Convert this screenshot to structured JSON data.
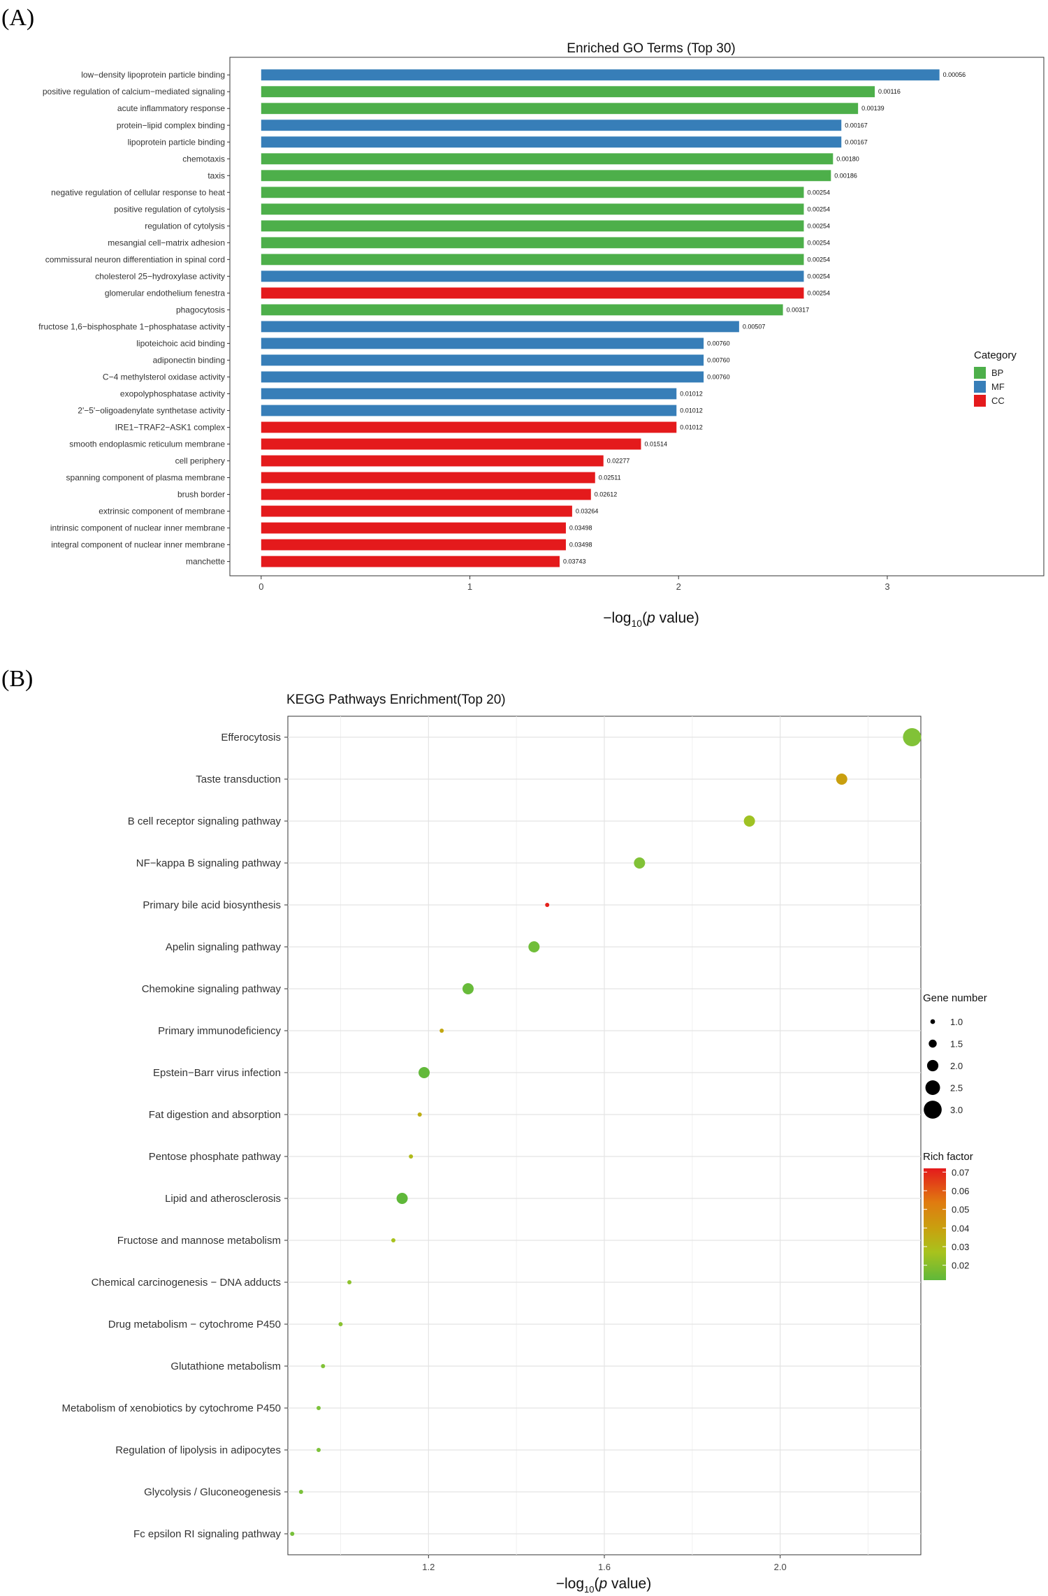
{
  "panels": {
    "a": "(A)",
    "b": "(B)"
  },
  "chart_data": [
    {
      "type": "bar",
      "orientation": "horizontal",
      "title": "Enriched GO Terms (Top 30)",
      "xlabel_main": "−log",
      "xlabel_sub": "10",
      "xlabel_p": "p",
      "xlabel_rest": " value)",
      "xlim": [
        -0.15,
        3.75
      ],
      "xticks": [
        "0",
        "1",
        "2",
        "3"
      ],
      "legend": {
        "title": "Category",
        "entries": [
          {
            "key": "BP",
            "label": "BP",
            "color": "#4daf4a"
          },
          {
            "key": "MF",
            "label": "MF",
            "color": "#377eb8"
          },
          {
            "key": "CC",
            "label": "CC",
            "color": "#e41a1c"
          }
        ]
      },
      "bars": [
        {
          "term": "low−density lipoprotein particle binding",
          "category": "MF",
          "pvalue_label": "0.00056",
          "value": 3.25
        },
        {
          "term": "positive regulation of calcium−mediated signaling",
          "category": "BP",
          "pvalue_label": "0.00116",
          "value": 2.94
        },
        {
          "term": "acute inflammatory response",
          "category": "BP",
          "pvalue_label": "0.00139",
          "value": 2.86
        },
        {
          "term": "protein−lipid complex binding",
          "category": "MF",
          "pvalue_label": "0.00167",
          "value": 2.78
        },
        {
          "term": "lipoprotein particle binding",
          "category": "MF",
          "pvalue_label": "0.00167",
          "value": 2.78
        },
        {
          "term": "chemotaxis",
          "category": "BP",
          "pvalue_label": "0.00180",
          "value": 2.74
        },
        {
          "term": "taxis",
          "category": "BP",
          "pvalue_label": "0.00186",
          "value": 2.73
        },
        {
          "term": "negative regulation of cellular response to heat",
          "category": "BP",
          "pvalue_label": "0.00254",
          "value": 2.6
        },
        {
          "term": "positive regulation of cytolysis",
          "category": "BP",
          "pvalue_label": "0.00254",
          "value": 2.6
        },
        {
          "term": "regulation of cytolysis",
          "category": "BP",
          "pvalue_label": "0.00254",
          "value": 2.6
        },
        {
          "term": "mesangial cell−matrix adhesion",
          "category": "BP",
          "pvalue_label": "0.00254",
          "value": 2.6
        },
        {
          "term": "commissural neuron differentiation in spinal cord",
          "category": "BP",
          "pvalue_label": "0.00254",
          "value": 2.6
        },
        {
          "term": "cholesterol 25−hydroxylase activity",
          "category": "MF",
          "pvalue_label": "0.00254",
          "value": 2.6
        },
        {
          "term": "glomerular endothelium fenestra",
          "category": "CC",
          "pvalue_label": "0.00254",
          "value": 2.6
        },
        {
          "term": "phagocytosis",
          "category": "BP",
          "pvalue_label": "0.00317",
          "value": 2.5
        },
        {
          "term": "fructose 1,6−bisphosphate 1−phosphatase activity",
          "category": "MF",
          "pvalue_label": "0.00507",
          "value": 2.29
        },
        {
          "term": "lipoteichoic acid binding",
          "category": "MF",
          "pvalue_label": "0.00760",
          "value": 2.12
        },
        {
          "term": "adiponectin binding",
          "category": "MF",
          "pvalue_label": "0.00760",
          "value": 2.12
        },
        {
          "term": "C−4 methylsterol oxidase activity",
          "category": "MF",
          "pvalue_label": "0.00760",
          "value": 2.12
        },
        {
          "term": "exopolyphosphatase activity",
          "category": "MF",
          "pvalue_label": "0.01012",
          "value": 1.99
        },
        {
          "term": "2'−5'−oligoadenylate synthetase activity",
          "category": "MF",
          "pvalue_label": "0.01012",
          "value": 1.99
        },
        {
          "term": "IRE1−TRAF2−ASK1 complex",
          "category": "CC",
          "pvalue_label": "0.01012",
          "value": 1.99
        },
        {
          "term": "smooth endoplasmic reticulum membrane",
          "category": "CC",
          "pvalue_label": "0.01514",
          "value": 1.82
        },
        {
          "term": "cell periphery",
          "category": "CC",
          "pvalue_label": "0.02277",
          "value": 1.64
        },
        {
          "term": "spanning component of plasma membrane",
          "category": "CC",
          "pvalue_label": "0.02511",
          "value": 1.6
        },
        {
          "term": "brush border",
          "category": "CC",
          "pvalue_label": "0.02612",
          "value": 1.58
        },
        {
          "term": "extrinsic component of membrane",
          "category": "CC",
          "pvalue_label": "0.03264",
          "value": 1.49
        },
        {
          "term": "intrinsic component of nuclear inner membrane",
          "category": "CC",
          "pvalue_label": "0.03498",
          "value": 1.46
        },
        {
          "term": "integral component of nuclear inner membrane",
          "category": "CC",
          "pvalue_label": "0.03498",
          "value": 1.46
        },
        {
          "term": "manchette",
          "category": "CC",
          "pvalue_label": "0.03743",
          "value": 1.43
        }
      ]
    },
    {
      "type": "scatter",
      "title": "KEGG Pathways Enrichment(Top 20)",
      "xlabel_main": "−log",
      "xlabel_sub": "10",
      "xlabel_p": "p",
      "xlabel_rest": " value)",
      "xlim": [
        0.88,
        2.32
      ],
      "xticks": [
        1.2,
        1.6,
        2.0
      ],
      "xtick_labels": [
        "1.2",
        "1.6",
        "2.0"
      ],
      "size_legend": {
        "title": "Gene number",
        "entries": [
          {
            "label": "1.0",
            "value": 1.0
          },
          {
            "label": "1.5",
            "value": 1.5
          },
          {
            "label": "2.0",
            "value": 2.0
          },
          {
            "label": "2.5",
            "value": 2.5
          },
          {
            "label": "3.0",
            "value": 3.0
          }
        ]
      },
      "color_legend": {
        "title": "Rich factor",
        "range": [
          0.012,
          0.072
        ],
        "ticks": [
          "0.07",
          "0.06",
          "0.05",
          "0.04",
          "0.03",
          "0.02"
        ],
        "tick_values": [
          0.07,
          0.06,
          0.05,
          0.04,
          0.03,
          0.02
        ],
        "colors": [
          "#e41a1c",
          "#e07a10",
          "#c7a20f",
          "#a8c21d",
          "#7dc23a",
          "#5fb83a"
        ]
      },
      "points": [
        {
          "pathway": "Efferocytosis",
          "x": 2.3,
          "genes": 3,
          "rich": 0.021
        },
        {
          "pathway": "Taste transduction",
          "x": 2.14,
          "genes": 2,
          "rich": 0.043
        },
        {
          "pathway": "B cell receptor signaling pathway",
          "x": 1.93,
          "genes": 2,
          "rich": 0.028
        },
        {
          "pathway": "NF−kappa B signaling pathway",
          "x": 1.68,
          "genes": 2,
          "rich": 0.021
        },
        {
          "pathway": "Primary bile acid biosynthesis",
          "x": 1.47,
          "genes": 1,
          "rich": 0.071
        },
        {
          "pathway": "Apelin signaling pathway",
          "x": 1.44,
          "genes": 2,
          "rich": 0.016
        },
        {
          "pathway": "Chemokine signaling pathway",
          "x": 1.29,
          "genes": 2,
          "rich": 0.013
        },
        {
          "pathway": "Primary immunodeficiency",
          "x": 1.23,
          "genes": 1,
          "rich": 0.04
        },
        {
          "pathway": "Epstein−Barr virus infection",
          "x": 1.19,
          "genes": 2,
          "rich": 0.011
        },
        {
          "pathway": "Fat digestion and absorption",
          "x": 1.18,
          "genes": 1,
          "rich": 0.038
        },
        {
          "pathway": "Pentose phosphate pathway",
          "x": 1.16,
          "genes": 1,
          "rich": 0.033
        },
        {
          "pathway": "Lipid and atherosclerosis",
          "x": 1.14,
          "genes": 2,
          "rich": 0.01
        },
        {
          "pathway": "Fructose and mannose metabolism",
          "x": 1.12,
          "genes": 1,
          "rich": 0.03
        },
        {
          "pathway": "Chemical carcinogenesis − DNA adducts",
          "x": 1.02,
          "genes": 1,
          "rich": 0.024
        },
        {
          "pathway": "Drug metabolism − cytochrome P450",
          "x": 1.0,
          "genes": 1,
          "rich": 0.023
        },
        {
          "pathway": "Glutathione metabolism",
          "x": 0.96,
          "genes": 1,
          "rich": 0.021
        },
        {
          "pathway": "Metabolism of xenobiotics by cytochrome P450",
          "x": 0.95,
          "genes": 1,
          "rich": 0.02
        },
        {
          "pathway": "Regulation of lipolysis in adipocytes",
          "x": 0.95,
          "genes": 1,
          "rich": 0.02
        },
        {
          "pathway": "Glycolysis / Gluconeogenesis",
          "x": 0.91,
          "genes": 1,
          "rich": 0.019
        },
        {
          "pathway": "Fc epsilon RI signaling pathway",
          "x": 0.89,
          "genes": 1,
          "rich": 0.018
        }
      ]
    }
  ]
}
